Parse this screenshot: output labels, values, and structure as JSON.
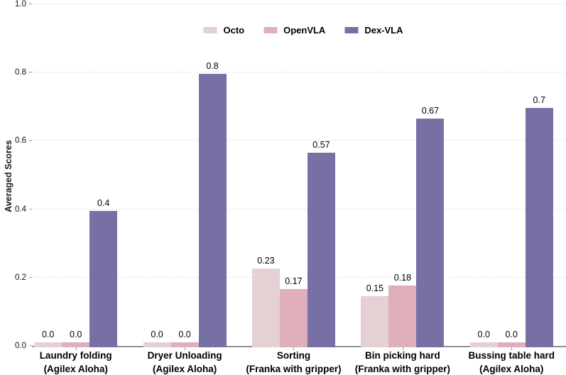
{
  "chart_data": {
    "type": "bar",
    "title": "",
    "xlabel": "",
    "ylabel": "Averaged Scores",
    "ylim": [
      0.0,
      1.0
    ],
    "yticks": [
      0.0,
      0.2,
      0.4,
      0.6,
      0.8,
      1.0
    ],
    "ytick_labels": [
      "0.0",
      "0.2",
      "0.4",
      "0.6",
      "0.8",
      "1.0"
    ],
    "grid": "horizontal-dotted",
    "legend_position": "top-center",
    "categories": [
      {
        "line1": "Laundry folding",
        "line2": "(Agilex Aloha)"
      },
      {
        "line1": "Dryer Unloading",
        "line2": "(Agilex Aloha)"
      },
      {
        "line1": "Sorting",
        "line2": "(Franka with gripper)"
      },
      {
        "line1": "Bin picking hard",
        "line2": "(Franka with gripper)"
      },
      {
        "line1": "Bussing table hard",
        "line2": "(Agilex Aloha)"
      }
    ],
    "series": [
      {
        "name": "Octo",
        "color": "#e5d0d3",
        "values": [
          0.0,
          0.0,
          0.23,
          0.15,
          0.0
        ],
        "labels": [
          "0.0",
          "0.0",
          "0.23",
          "0.15",
          "0.0"
        ]
      },
      {
        "name": "OpenVLA",
        "color": "#dfaebb",
        "values": [
          0.0,
          0.0,
          0.17,
          0.18,
          0.0
        ],
        "labels": [
          "0.0",
          "0.0",
          "0.17",
          "0.18",
          "0.0"
        ]
      },
      {
        "name": "Dex-VLA",
        "color": "#7670a5",
        "values": [
          0.4,
          0.8,
          0.57,
          0.67,
          0.7
        ],
        "labels": [
          "0.4",
          "0.8",
          "0.57",
          "0.67",
          "0.7"
        ]
      }
    ]
  },
  "colors": {
    "axis_line": "#919191",
    "gridline": "#dedede",
    "tick_text": "#111111",
    "label_text": "#000000"
  }
}
